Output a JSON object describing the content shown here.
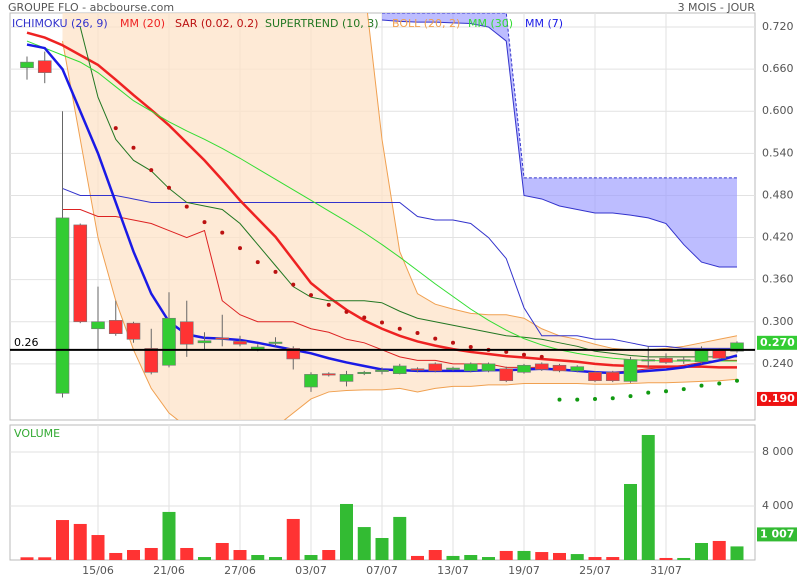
{
  "chart_data": [
    {
      "type": "candlestick",
      "title": "GROUPE FLO - abcbourse.com",
      "subtitle": "3 MOIS - JOUR",
      "open": [
        0.662,
        0.672,
        0.198,
        0.438,
        0.29,
        0.302,
        0.298,
        0.262,
        0.238,
        0.3,
        0.27,
        0.277,
        0.272,
        0.26,
        0.269,
        0.262,
        0.207,
        0.226,
        0.215,
        0.226,
        0.229,
        0.226,
        0.233,
        0.24,
        0.232,
        0.23,
        0.23,
        0.233,
        0.228,
        0.24,
        0.238,
        0.23,
        0.228,
        0.228,
        0.215,
        0.244,
        0.248,
        0.244,
        0.243,
        0.259,
        0.258
      ],
      "high": [
        0.678,
        0.685,
        0.6,
        0.44,
        0.35,
        0.33,
        0.3,
        0.29,
        0.342,
        0.33,
        0.285,
        0.31,
        0.28,
        0.268,
        0.278,
        0.265,
        0.228,
        0.228,
        0.23,
        0.23,
        0.235,
        0.24,
        0.235,
        0.242,
        0.236,
        0.242,
        0.242,
        0.236,
        0.24,
        0.242,
        0.24,
        0.238,
        0.23,
        0.23,
        0.25,
        0.265,
        0.255,
        0.25,
        0.265,
        0.262,
        0.272
      ],
      "low": [
        0.645,
        0.64,
        0.192,
        0.298,
        0.26,
        0.28,
        0.27,
        0.225,
        0.235,
        0.25,
        0.26,
        0.265,
        0.265,
        0.258,
        0.265,
        0.232,
        0.2,
        0.222,
        0.208,
        0.224,
        0.225,
        0.225,
        0.228,
        0.228,
        0.23,
        0.228,
        0.228,
        0.214,
        0.226,
        0.23,
        0.228,
        0.228,
        0.214,
        0.214,
        0.213,
        0.235,
        0.24,
        0.24,
        0.24,
        0.246,
        0.256
      ],
      "close": [
        0.67,
        0.655,
        0.448,
        0.3,
        0.3,
        0.283,
        0.275,
        0.228,
        0.305,
        0.268,
        0.273,
        0.275,
        0.268,
        0.264,
        0.271,
        0.247,
        0.225,
        0.224,
        0.225,
        0.228,
        0.231,
        0.237,
        0.231,
        0.23,
        0.234,
        0.24,
        0.24,
        0.216,
        0.238,
        0.232,
        0.23,
        0.236,
        0.216,
        0.216,
        0.246,
        0.246,
        0.242,
        0.246,
        0.26,
        0.248,
        0.27
      ],
      "up_color": "#33cc33",
      "down_color": "#ff3333",
      "ylim": [
        0.16,
        0.74
      ],
      "yticks": [
        {
          "value": 0.24,
          "label": "0.240"
        },
        {
          "value": 0.3,
          "label": "0.300"
        },
        {
          "value": 0.36,
          "label": "0.360"
        },
        {
          "value": 0.42,
          "label": "0.420"
        },
        {
          "value": 0.48,
          "label": "0.480"
        },
        {
          "value": 0.54,
          "label": "0.540"
        },
        {
          "value": 0.6,
          "label": "0.600"
        },
        {
          "value": 0.66,
          "label": "0.660"
        },
        {
          "value": 0.72,
          "label": "0.720"
        }
      ],
      "grid": true,
      "reference_line": 0.26,
      "price_tags": [
        {
          "value": 0.27,
          "label": "0.270",
          "color": "#33cc33"
        },
        {
          "value": 0.19,
          "label": "0.190",
          "color": "#ee1111"
        }
      ],
      "series": [
        {
          "name": "ICHIMOKU (26, 9)",
          "style": "ichimoku",
          "color": "#3333cc",
          "tenkan_color": "#dd2222",
          "cloud_color": "#9999ff",
          "tenkan": [
            null,
            null,
            0.46,
            0.46,
            0.45,
            0.45,
            0.445,
            0.44,
            0.43,
            0.42,
            0.43,
            0.33,
            0.31,
            0.3,
            0.3,
            0.3,
            0.29,
            0.285,
            0.275,
            0.27,
            0.26,
            0.25,
            0.245,
            0.245,
            0.24,
            0.24,
            0.24,
            0.235,
            0.235,
            0.235,
            0.232,
            0.23,
            0.228,
            0.228,
            0.23,
            0.233,
            0.235,
            0.238,
            0.242,
            0.245,
            0.245
          ],
          "kijun": [
            null,
            null,
            0.49,
            0.48,
            0.48,
            0.48,
            0.475,
            0.47,
            0.47,
            0.47,
            0.47,
            0.47,
            0.47,
            0.47,
            0.47,
            0.47,
            0.47,
            0.47,
            0.47,
            0.47,
            0.47,
            0.47,
            0.45,
            0.445,
            0.445,
            0.44,
            0.42,
            0.39,
            0.32,
            0.28,
            0.28,
            0.28,
            0.275,
            0.275,
            0.27,
            0.265,
            0.265,
            0.262,
            0.262,
            0.262,
            0.262
          ],
          "span_a": [
            null,
            null,
            null,
            null,
            null,
            null,
            null,
            null,
            null,
            null,
            null,
            null,
            null,
            null,
            null,
            null,
            null,
            null,
            null,
            null,
            0.74,
            0.74,
            0.74,
            0.74,
            0.74,
            0.74,
            0.74,
            0.74,
            0.505,
            0.505,
            0.505,
            0.505,
            0.505,
            0.505,
            0.505,
            0.505,
            0.505,
            0.505,
            0.505,
            0.505,
            0.505
          ],
          "span_b": [
            null,
            null,
            null,
            null,
            null,
            null,
            null,
            null,
            null,
            null,
            null,
            null,
            null,
            null,
            null,
            null,
            null,
            null,
            null,
            null,
            0.73,
            0.728,
            0.727,
            0.727,
            0.726,
            0.725,
            0.72,
            0.7,
            0.48,
            0.475,
            0.465,
            0.46,
            0.455,
            0.455,
            0.452,
            0.448,
            0.44,
            0.41,
            0.385,
            0.378,
            0.378
          ]
        },
        {
          "name": "MM (20)",
          "style": "line",
          "color": "#ee2222",
          "width": 2.5,
          "values": [
            0.712,
            0.705,
            0.694,
            0.68,
            0.666,
            0.645,
            0.623,
            0.602,
            0.58,
            0.555,
            0.53,
            0.502,
            0.473,
            0.447,
            0.421,
            0.388,
            0.355,
            0.335,
            0.317,
            0.302,
            0.29,
            0.28,
            0.272,
            0.266,
            0.261,
            0.257,
            0.254,
            0.251,
            0.249,
            0.247,
            0.245,
            0.243,
            0.24,
            0.238,
            0.237,
            0.236,
            0.236,
            0.236,
            0.236,
            0.235,
            0.235
          ]
        },
        {
          "name": "SAR (0.02, 0.2)",
          "style": "dots",
          "color": "#bb1111",
          "rising_color": "#119911",
          "values": [
            null,
            null,
            null,
            null,
            null,
            0.576,
            0.548,
            0.516,
            0.491,
            0.464,
            0.442,
            0.427,
            0.405,
            0.385,
            0.371,
            0.353,
            0.338,
            0.324,
            0.314,
            0.306,
            0.299,
            0.29,
            0.284,
            0.276,
            0.27,
            0.264,
            0.26,
            0.257,
            0.253,
            0.25,
            0.189,
            0.189,
            0.19,
            0.191,
            0.194,
            0.199,
            0.201,
            0.204,
            0.209,
            0.212,
            0.216
          ]
        },
        {
          "name": "SUPERTREND (10, 3)",
          "style": "line",
          "color": "#227722",
          "width": 1,
          "values": [
            null,
            null,
            null,
            0.72,
            0.62,
            0.56,
            0.53,
            0.515,
            0.49,
            0.47,
            0.465,
            0.46,
            0.44,
            0.41,
            0.38,
            0.35,
            0.335,
            0.33,
            0.33,
            0.33,
            0.327,
            0.315,
            0.305,
            0.3,
            0.295,
            0.29,
            0.285,
            0.28,
            0.278,
            0.275,
            0.27,
            0.265,
            0.258,
            0.255,
            0.252,
            0.25,
            0.25,
            0.25,
            0.25,
            0.25,
            0.25
          ]
        },
        {
          "name": "BOLL (20, 2)",
          "style": "band",
          "color": "#f0a050",
          "fill": "#fde3c8",
          "upper": [
            null,
            null,
            0.78,
            0.78,
            0.78,
            0.78,
            0.78,
            0.78,
            0.78,
            0.78,
            0.78,
            0.78,
            0.78,
            0.78,
            0.78,
            0.78,
            0.78,
            0.78,
            0.78,
            0.78,
            0.56,
            0.4,
            0.34,
            0.325,
            0.318,
            0.312,
            0.31,
            0.31,
            0.305,
            0.29,
            0.28,
            0.275,
            0.268,
            0.262,
            0.26,
            0.26,
            0.262,
            0.265,
            0.27,
            0.275,
            0.28
          ],
          "lower": [
            null,
            null,
            0.7,
            0.56,
            0.42,
            0.33,
            0.26,
            0.205,
            0.17,
            0.15,
            0.14,
            0.14,
            0.14,
            0.14,
            0.15,
            0.17,
            0.19,
            0.2,
            0.202,
            0.203,
            0.203,
            0.205,
            0.2,
            0.205,
            0.208,
            0.208,
            0.21,
            0.21,
            0.212,
            0.212,
            0.212,
            0.212,
            0.211,
            0.211,
            0.212,
            0.213,
            0.213,
            0.214,
            0.215,
            0.216,
            0.218
          ]
        },
        {
          "name": "MM (30)",
          "style": "line",
          "color": "#33dd33",
          "width": 1,
          "values": [
            0.7,
            0.69,
            0.68,
            0.67,
            0.655,
            0.635,
            0.615,
            0.6,
            0.585,
            0.572,
            0.56,
            0.547,
            0.533,
            0.518,
            0.503,
            0.488,
            0.473,
            0.458,
            0.443,
            0.427,
            0.41,
            0.392,
            0.373,
            0.354,
            0.336,
            0.318,
            0.302,
            0.288,
            0.276,
            0.267,
            0.26,
            0.255,
            0.251,
            0.248,
            0.246,
            0.245,
            0.244,
            0.244,
            0.244,
            0.244,
            0.244
          ]
        },
        {
          "name": "MM (7)",
          "style": "line",
          "color": "#1a1ae6",
          "width": 2.5,
          "values": [
            0.695,
            0.69,
            0.66,
            0.6,
            0.54,
            0.47,
            0.4,
            0.34,
            0.3,
            0.282,
            0.277,
            0.276,
            0.274,
            0.27,
            0.265,
            0.26,
            0.255,
            0.248,
            0.242,
            0.237,
            0.232,
            0.231,
            0.23,
            0.23,
            0.23,
            0.23,
            0.231,
            0.231,
            0.232,
            0.233,
            0.232,
            0.23,
            0.228,
            0.227,
            0.228,
            0.23,
            0.232,
            0.235,
            0.24,
            0.245,
            0.252
          ]
        }
      ]
    },
    {
      "type": "bar",
      "title": "VOLUME",
      "categories": [
        null,
        null,
        null,
        null,
        "15/06",
        null,
        null,
        null,
        "21/06",
        null,
        null,
        null,
        "27/06",
        null,
        null,
        null,
        "03/07",
        null,
        null,
        null,
        "07/07",
        null,
        null,
        null,
        "13/07",
        null,
        null,
        null,
        "19/07",
        null,
        null,
        null,
        "25/07",
        null,
        null,
        null,
        "31/07",
        null,
        null,
        null,
        null
      ],
      "values": [
        200,
        200,
        2960,
        2670,
        1850,
        520,
        740,
        890,
        3560,
        890,
        220,
        1260,
        740,
        370,
        220,
        3040,
        370,
        740,
        4150,
        2440,
        1630,
        3190,
        300,
        740,
        300,
        370,
        220,
        670,
        670,
        590,
        520,
        440,
        220,
        220,
        5630,
        9260,
        150,
        150,
        1260,
        1410,
        1007
      ],
      "colors": [
        "#ff3333",
        "#ff3333",
        "#ff3333",
        "#ff3333",
        "#ff3333",
        "#ff3333",
        "#ff3333",
        "#ff3333",
        "#33bb33",
        "#ff3333",
        "#33bb33",
        "#ff3333",
        "#ff3333",
        "#33bb33",
        "#33bb33",
        "#ff3333",
        "#33bb33",
        "#ff3333",
        "#33bb33",
        "#33bb33",
        "#33bb33",
        "#33bb33",
        "#ff3333",
        "#ff3333",
        "#33bb33",
        "#33bb33",
        "#33bb33",
        "#ff3333",
        "#33bb33",
        "#ff3333",
        "#ff3333",
        "#33bb33",
        "#ff3333",
        "#ff3333",
        "#33bb33",
        "#33bb33",
        "#ff3333",
        "#33bb33",
        "#33bb33",
        "#ff3333",
        "#33bb33"
      ],
      "ylim": [
        0,
        10000
      ],
      "yticks": [
        {
          "value": 4000,
          "label": "4 000"
        },
        {
          "value": 8000,
          "label": "8 000"
        }
      ],
      "grid": true,
      "last_tag": {
        "value": 1007,
        "label": "1 007",
        "color": "#33bb33"
      }
    }
  ]
}
